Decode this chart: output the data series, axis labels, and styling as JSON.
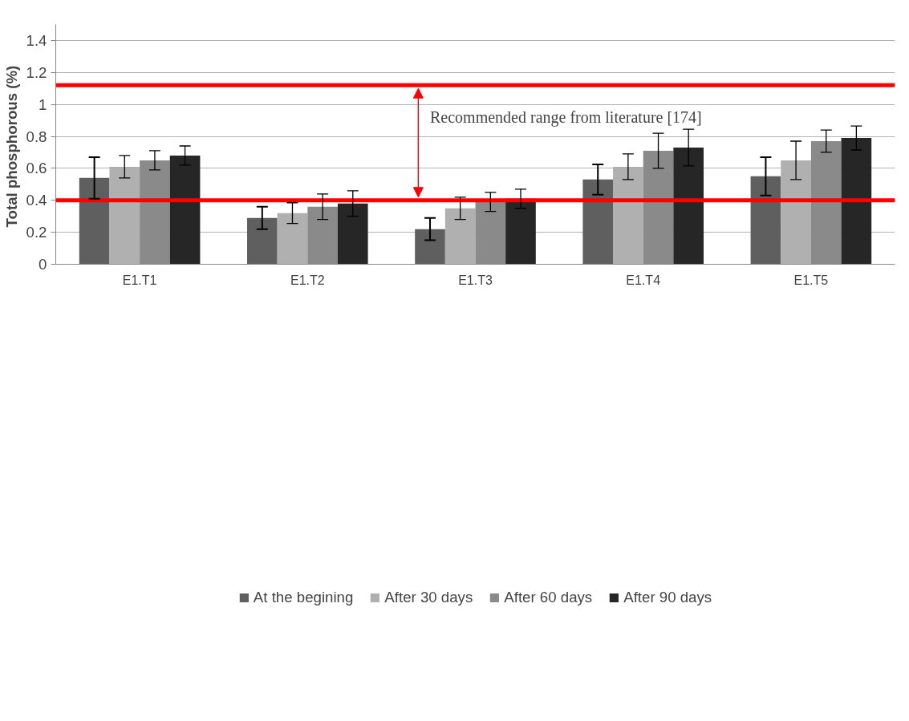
{
  "chart_data": {
    "type": "bar",
    "ylabel": "Total phosphorous  (%)",
    "categories": [
      "E1.T1",
      "E1.T2",
      "E1.T3",
      "E1.T4",
      "E1.T5"
    ],
    "series": [
      {
        "name": "At the begining",
        "color": "#5f5f5f",
        "values": [
          0.54,
          0.29,
          0.22,
          0.53,
          0.55
        ],
        "errors": [
          0.13,
          0.07,
          0.07,
          0.095,
          0.12
        ]
      },
      {
        "name": "After 30 days",
        "color": "#b0b0b0",
        "values": [
          0.61,
          0.32,
          0.35,
          0.61,
          0.65
        ],
        "errors": [
          0.07,
          0.065,
          0.07,
          0.08,
          0.12
        ]
      },
      {
        "name": "After 60 days",
        "color": "#8a8a8a",
        "values": [
          0.65,
          0.36,
          0.39,
          0.71,
          0.77
        ],
        "errors": [
          0.06,
          0.08,
          0.06,
          0.11,
          0.07
        ]
      },
      {
        "name": "After 90 days",
        "color": "#262626",
        "values": [
          0.68,
          0.38,
          0.41,
          0.73,
          0.79
        ],
        "errors": [
          0.06,
          0.08,
          0.06,
          0.115,
          0.075
        ]
      }
    ],
    "ylim": [
      0,
      1.5
    ],
    "yticks": [
      0,
      0.2,
      0.4,
      0.6,
      0.8,
      1,
      1.2,
      1.4
    ],
    "grid": "y",
    "legend": "bottom",
    "ref_lines": [
      {
        "axis": "y",
        "value": 1.12,
        "color": "#ff0000"
      },
      {
        "axis": "y",
        "value": 0.4,
        "color": "#ff0000"
      }
    ],
    "annotations": [
      "Recommended range from literature [174]"
    ]
  }
}
